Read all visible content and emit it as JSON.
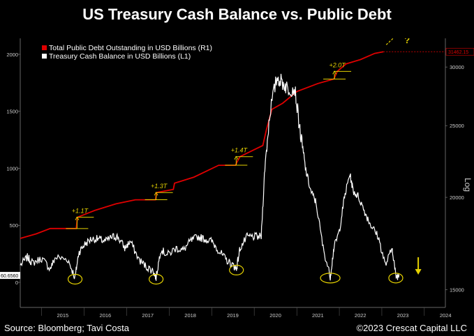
{
  "title": "US Treasury Cash Balance vs. Public Debt",
  "footer": {
    "source": "Source: Bloomberg; Tavi Costa",
    "copyright": "©2023 Crescat Capital LLC"
  },
  "colors": {
    "debt": "#e00000",
    "cash": "#ffffff",
    "annotation": "#e6d200",
    "background": "#000000"
  },
  "chart_data": {
    "type": "line",
    "legend_position": "top-left",
    "x_range": [
      "2014-07-01",
      "2024-06-30"
    ],
    "x_ticks": [
      "2015",
      "2016",
      "2017",
      "2018",
      "2019",
      "2020",
      "2021",
      "2022",
      "2023",
      "2024"
    ],
    "y_left": {
      "ticks": [
        "0",
        "500",
        "1000",
        "1500",
        "2000"
      ],
      "range": [
        -220,
        2140
      ]
    },
    "y_right": {
      "scale": "log",
      "axis_label": "Log",
      "ticks": [
        "15000",
        "20000",
        "25000",
        "30000"
      ],
      "range": [
        14200,
        32800
      ]
    },
    "last_values": {
      "cash": "60.6560",
      "debt": "31462.15"
    },
    "series": [
      {
        "name": "Total Public Debt Outstanding in USD Billions (R1)",
        "axis": "right",
        "points": [
          [
            "2014-07-01",
            17600
          ],
          [
            "2014-11-15",
            17850
          ],
          [
            "2015-03-15",
            18150
          ],
          [
            "2015-10-25",
            18150
          ],
          [
            "2015-11-05",
            18800
          ],
          [
            "2016-04-01",
            19200
          ],
          [
            "2016-10-01",
            19600
          ],
          [
            "2017-03-15",
            19850
          ],
          [
            "2017-09-05",
            19850
          ],
          [
            "2017-09-15",
            20300
          ],
          [
            "2018-02-05",
            20500
          ],
          [
            "2018-02-15",
            20900
          ],
          [
            "2018-08-01",
            21300
          ],
          [
            "2019-03-01",
            22100
          ],
          [
            "2019-07-25",
            22100
          ],
          [
            "2019-08-05",
            22300
          ],
          [
            "2019-09-01",
            22700
          ],
          [
            "2020-01-01",
            23200
          ],
          [
            "2020-03-15",
            23500
          ],
          [
            "2020-04-15",
            24700
          ],
          [
            "2020-06-01",
            26300
          ],
          [
            "2020-09-01",
            26800
          ],
          [
            "2021-01-01",
            27800
          ],
          [
            "2021-07-01",
            28500
          ],
          [
            "2021-11-15",
            28900
          ],
          [
            "2021-12-15",
            29600
          ],
          [
            "2022-03-01",
            30300
          ],
          [
            "2022-07-01",
            30700
          ],
          [
            "2022-11-01",
            31300
          ],
          [
            "2023-01-15",
            31462
          ]
        ]
      },
      {
        "name": "Treasury Cash Balance in USD Billions (L1)",
        "axis": "left",
        "points": [
          [
            "2014-07-01",
            150
          ],
          [
            "2014-09-01",
            220
          ],
          [
            "2014-10-15",
            170
          ],
          [
            "2015-01-01",
            210
          ],
          [
            "2015-03-15",
            120
          ],
          [
            "2015-05-01",
            220
          ],
          [
            "2015-08-15",
            200
          ],
          [
            "2015-10-15",
            40
          ],
          [
            "2015-11-15",
            260
          ],
          [
            "2016-01-01",
            330
          ],
          [
            "2016-03-01",
            380
          ],
          [
            "2016-05-01",
            380
          ],
          [
            "2016-07-01",
            360
          ],
          [
            "2016-09-01",
            400
          ],
          [
            "2016-10-15",
            400
          ],
          [
            "2016-12-15",
            300
          ],
          [
            "2017-02-01",
            360
          ],
          [
            "2017-04-15",
            200
          ],
          [
            "2017-06-15",
            140
          ],
          [
            "2017-08-15",
            100
          ],
          [
            "2017-09-10",
            40
          ],
          [
            "2017-10-20",
            290
          ],
          [
            "2017-12-15",
            240
          ],
          [
            "2018-03-01",
            300
          ],
          [
            "2018-05-01",
            280
          ],
          [
            "2018-07-01",
            360
          ],
          [
            "2018-09-01",
            400
          ],
          [
            "2018-11-01",
            380
          ],
          [
            "2019-01-01",
            360
          ],
          [
            "2019-03-01",
            280
          ],
          [
            "2019-05-01",
            200
          ],
          [
            "2019-07-01",
            150
          ],
          [
            "2019-08-01",
            120
          ],
          [
            "2019-09-01",
            300
          ],
          [
            "2019-11-01",
            400
          ],
          [
            "2020-01-01",
            400
          ],
          [
            "2020-03-01",
            400
          ],
          [
            "2020-04-01",
            1000
          ],
          [
            "2020-05-15",
            1500
          ],
          [
            "2020-07-15",
            1800
          ],
          [
            "2020-09-01",
            1750
          ],
          [
            "2020-10-15",
            1700
          ],
          [
            "2020-12-15",
            1700
          ],
          [
            "2021-02-01",
            1300
          ],
          [
            "2021-03-15",
            1000
          ],
          [
            "2021-05-01",
            800
          ],
          [
            "2021-06-15",
            700
          ],
          [
            "2021-08-15",
            300
          ],
          [
            "2021-10-15",
            50
          ],
          [
            "2021-11-15",
            300
          ],
          [
            "2022-01-01",
            450
          ],
          [
            "2022-02-15",
            750
          ],
          [
            "2022-04-01",
            950
          ],
          [
            "2022-05-01",
            800
          ],
          [
            "2022-06-15",
            750
          ],
          [
            "2022-08-15",
            600
          ],
          [
            "2022-10-01",
            500
          ],
          [
            "2022-12-01",
            400
          ],
          [
            "2023-02-01",
            150
          ],
          [
            "2023-04-01",
            300
          ],
          [
            "2023-05-01",
            50
          ],
          [
            "2023-06-01",
            60.656
          ]
        ]
      }
    ],
    "annotations": [
      {
        "label": "+1.1T",
        "date": "2015-11-01",
        "from": 18150,
        "to": 18800
      },
      {
        "label": "+1.3T",
        "date": "2017-09-10",
        "from": 19850,
        "to": 20300
      },
      {
        "label": "+1.4T",
        "date": "2019-07-30",
        "from": 22100,
        "to": 22700
      },
      {
        "label": "+2.0T",
        "date": "2021-11-20",
        "from": 28900,
        "to": 29600
      }
    ],
    "forecast_marks": {
      "debt": "?",
      "cash": "down-arrow"
    }
  }
}
